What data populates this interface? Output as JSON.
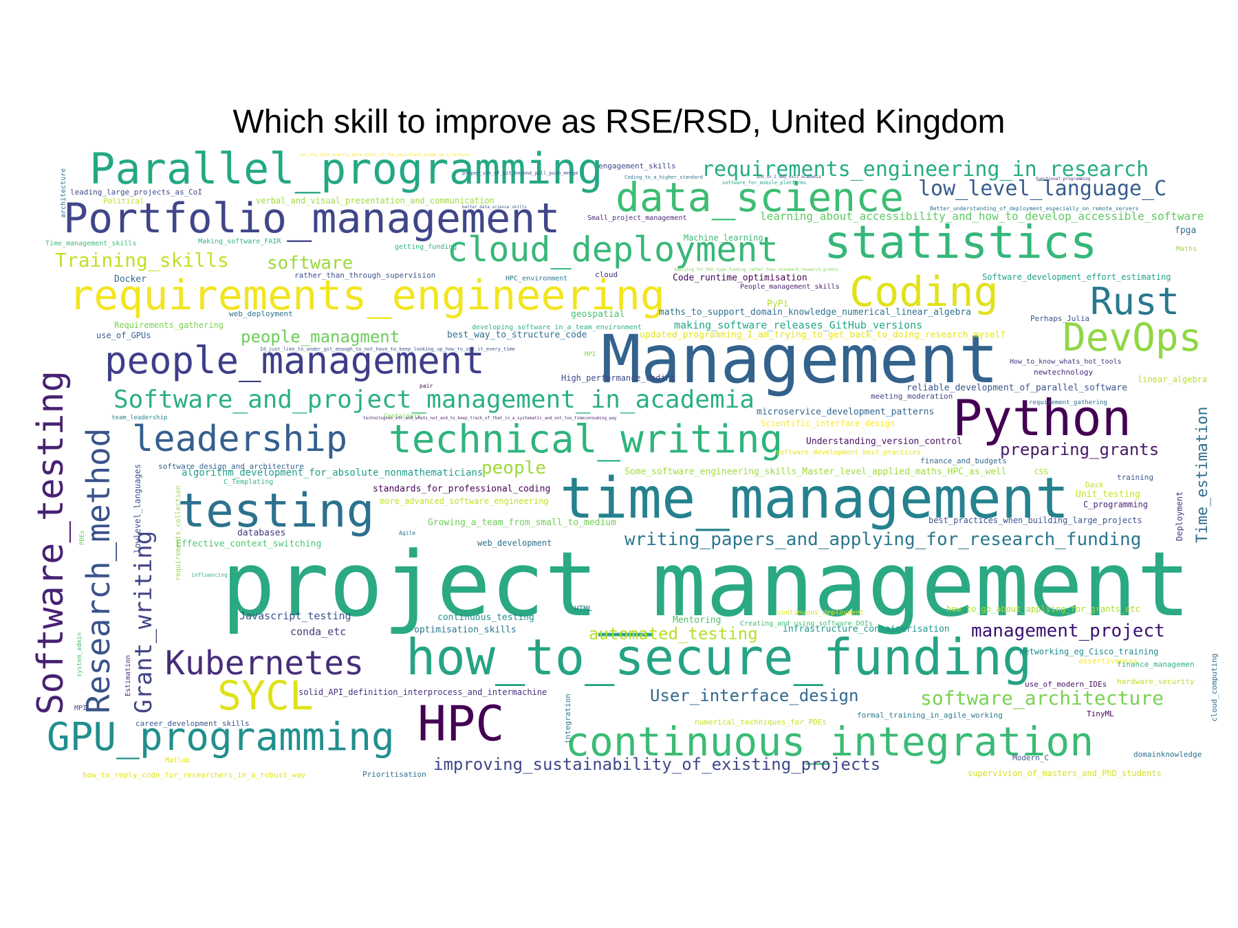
{
  "title": "Which skill to improve as RSE/RSD, United Kingdom",
  "words": [
    {
      "t": "project_management",
      "c": "#2aa983"
    },
    {
      "t": "Management",
      "c": "#33628d"
    },
    {
      "t": "time_management",
      "c": "#26818e"
    },
    {
      "t": "how_to_secure_funding",
      "c": "#25a384"
    },
    {
      "t": "Parallel_programming",
      "c": "#24a884"
    },
    {
      "t": "Portfolio_management",
      "c": "#404688"
    },
    {
      "t": "requirements_engineering",
      "c": "#f2e51e"
    },
    {
      "t": "statistics",
      "c": "#35b779"
    },
    {
      "t": "data_science",
      "c": "#3cbc74"
    },
    {
      "t": "cloud_deployment",
      "c": "#37b878"
    },
    {
      "t": "Coding",
      "c": "#e1e21a"
    },
    {
      "t": "Rust",
      "c": "#2a788e"
    },
    {
      "t": "DevOps",
      "c": "#8fd744"
    },
    {
      "t": "Python",
      "c": "#440154"
    },
    {
      "t": "people_management",
      "c": "#3e3e8a"
    },
    {
      "t": "technical_writing",
      "c": "#2fb47c"
    },
    {
      "t": "leadership",
      "c": "#355f8d"
    },
    {
      "t": "testing",
      "c": "#2c718e"
    },
    {
      "t": "Software_and_project_management_in_academia",
      "c": "#2ab07f"
    },
    {
      "t": "continuous_integration",
      "c": "#3bbb75"
    },
    {
      "t": "HPC",
      "c": "#440154"
    },
    {
      "t": "GPU_programming",
      "c": "#218f8d"
    },
    {
      "t": "Kubernetes",
      "c": "#472d7b"
    },
    {
      "t": "SYCL",
      "c": "#dde318"
    },
    {
      "t": "Software_testing",
      "c": "#482173"
    },
    {
      "t": "Research_method",
      "c": "#3a538b"
    },
    {
      "t": "Grant_writing",
      "c": "#414487"
    },
    {
      "t": "requirements_engineering_in_research",
      "c": "#25ac82"
    },
    {
      "t": "low_level_language_C",
      "c": "#365c8d"
    },
    {
      "t": "Training_skills",
      "c": "#c2df23"
    },
    {
      "t": "software",
      "c": "#9bd93c"
    },
    {
      "t": "people_managment",
      "c": "#6ccd5a"
    },
    {
      "t": "writing_papers_and_applying_for_research_funding",
      "c": "#2a768e"
    },
    {
      "t": "improving_sustainability_of_existing_projects",
      "c": "#3f4889"
    },
    {
      "t": "management_project",
      "c": "#3b0f70"
    },
    {
      "t": "software_architecture",
      "c": "#7ad151"
    },
    {
      "t": "preparing_grants",
      "c": "#481769"
    },
    {
      "t": "User_interface_design",
      "c": "#31688e"
    },
    {
      "t": "automated_testing",
      "c": "#b5de2b"
    },
    {
      "t": "people",
      "c": "#9dd93b"
    },
    {
      "t": "Time_estimation",
      "c": "#2e6e8e"
    },
    {
      "t": "learning_about_accessibility_and_how_to_develop_accessible_software",
      "c": "#5ec962"
    },
    {
      "t": "updated_programming_I_am_trying_to_get_back_to_doing_research_myself",
      "c": "#e5e419"
    },
    {
      "t": "making_software_releases_GitHub_versions",
      "c": "#22a785"
    },
    {
      "t": "maths_to_support_domain_knowledge_numerical_linear_algebra",
      "c": "#2c728e"
    },
    {
      "t": "reliable_development_of_parallel_software",
      "c": "#39568c"
    },
    {
      "t": "microservice_development_patterns",
      "c": "#32658e"
    },
    {
      "t": "Understanding_version_control",
      "c": "#471063"
    },
    {
      "t": "algorithm_development_for_absolute_nonmathematicians",
      "c": "#1f9f88"
    },
    {
      "t": "Some_software_engineering_skills_Master_level_applied_maths_HPC_as_well",
      "c": "#9fda3a"
    },
    {
      "t": "best_practices_when_building_large_projects",
      "c": "#3a538b"
    },
    {
      "t": "how_to_go_about_applying_for_grants_etc",
      "c": "#a8db34"
    },
    {
      "t": "infrastructure_containerisation",
      "c": "#1f948c"
    },
    {
      "t": "optimisation_skills",
      "c": "#2a768e"
    },
    {
      "t": "continuous_testing",
      "c": "#228b8d"
    },
    {
      "t": "Javascript_testing",
      "c": "#3b528b"
    },
    {
      "t": "conda_etc",
      "c": "#443983"
    },
    {
      "t": "solid_API_definition_interprocess_and_intermachine",
      "c": "#46307e"
    },
    {
      "t": "Growing_a_team_from_small_to_medium",
      "c": "#6ece58"
    },
    {
      "t": "Effective_context_switching",
      "c": "#4ec36b"
    },
    {
      "t": "standards_for_professional_coding",
      "c": "#440154"
    },
    {
      "t": "more_advanced_software_engineering",
      "c": "#c0df25"
    },
    {
      "t": "best_way_to_structure_code",
      "c": "#2d708e"
    },
    {
      "t": "Requirements_gathering",
      "c": "#7ad151"
    },
    {
      "t": "use_of_GPUs",
      "c": "#355f8d"
    },
    {
      "t": "verbal_and_visual_presentation_and_communication",
      "c": "#9fda3a"
    },
    {
      "t": "leading_large_projects_as_CoI",
      "c": "#3e4a89"
    },
    {
      "t": "Political",
      "c": "#bddf26"
    },
    {
      "t": "engagement_skills",
      "c": "#3f4788"
    },
    {
      "t": "Software_development_effort_estimating",
      "c": "#1fa188"
    },
    {
      "t": "Code_runtime_optimisation",
      "c": "#440154"
    },
    {
      "t": "People_management_skills",
      "c": "#481f70"
    },
    {
      "t": "Machine_learning",
      "c": "#3dbc74"
    },
    {
      "t": "Small_project_management",
      "c": "#482878"
    },
    {
      "t": "getting_funding",
      "c": "#2db27d"
    },
    {
      "t": "rather_than_through_supervision",
      "c": "#3b528b"
    },
    {
      "t": "High_performance_coding",
      "c": "#3e4989"
    },
    {
      "t": "Docker",
      "c": "#31688e"
    },
    {
      "t": "PyPi",
      "c": "#b5de2b"
    },
    {
      "t": "geospatial",
      "c": "#4ac16d"
    },
    {
      "t": "fpga",
      "c": "#2c728e"
    },
    {
      "t": "Perhaps_Julia",
      "c": "#3a548c"
    },
    {
      "t": "newtechnology",
      "c": "#472c7a"
    },
    {
      "t": "linear_algebra",
      "c": "#b8de29"
    },
    {
      "t": "web_deployment",
      "c": "#2c728e"
    },
    {
      "t": "meeting_moderation",
      "c": "#414487"
    },
    {
      "t": "Scientific_interface_design",
      "c": "#fde725"
    },
    {
      "t": "finance_and_budgets",
      "c": "#31688e"
    },
    {
      "t": "web_development",
      "c": "#2d708e"
    },
    {
      "t": "databases",
      "c": "#46337f"
    },
    {
      "t": "Mentoring",
      "c": "#4cc26c"
    },
    {
      "t": "HTML",
      "c": "#2a788e"
    },
    {
      "t": "training",
      "c": "#39568c"
    },
    {
      "t": "Unit_testing",
      "c": "#cae11f"
    },
    {
      "t": "C_programming",
      "c": "#482576"
    },
    {
      "t": "Dask",
      "c": "#c2df23"
    },
    {
      "t": "Deployment",
      "c": "#453581"
    },
    {
      "t": "CSS",
      "c": "#a2da37"
    },
    {
      "t": "networking_eg_Cisco_training",
      "c": "#23898e"
    },
    {
      "t": "assertiveness",
      "c": "#fde725"
    },
    {
      "t": "finance_managemen",
      "c": "#2fb47c"
    },
    {
      "t": "hardware_security",
      "c": "#b8de29"
    },
    {
      "t": "use_of_modern_IDEs",
      "c": "#471365"
    },
    {
      "t": "TinyML",
      "c": "#440154"
    },
    {
      "t": "domainknowledge",
      "c": "#2d708e"
    },
    {
      "t": "cloud_computing",
      "c": "#2e6e8e"
    },
    {
      "t": "Modern_C",
      "c": "#3a548c"
    },
    {
      "t": "supervivion_of_masters_and_PhD_students",
      "c": "#d5e21a"
    },
    {
      "t": "formal_training_in_agile_working",
      "c": "#297b8e"
    },
    {
      "t": "numerical_techniques_for_PDEs",
      "c": "#c8e020"
    },
    {
      "t": "career_development_skills",
      "c": "#39568c"
    },
    {
      "t": "Matlab",
      "c": "#dde318"
    },
    {
      "t": "how_to_reply_code_for_researchers_in_a_robust_way",
      "c": "#dde318"
    },
    {
      "t": "Prioritisation",
      "c": "#2e6e8e"
    },
    {
      "t": "lowlevel_languages",
      "c": "#3a548c"
    },
    {
      "t": "requirements_collection",
      "c": "#95d840"
    },
    {
      "t": "Estimation",
      "c": "#472f7d"
    },
    {
      "t": "integration",
      "c": "#2a788e"
    },
    {
      "t": "architecture",
      "c": "#2c728e"
    },
    {
      "t": "software_design_and_architecture",
      "c": "#33638d"
    },
    {
      "t": "C_Templating",
      "c": "#31b57b"
    },
    {
      "t": "Time_management_skills",
      "c": "#3dbc74"
    },
    {
      "t": "Making_software_FAIR",
      "c": "#2fb47c"
    },
    {
      "t": "HPC_environment",
      "c": "#2a788e"
    },
    {
      "t": "cloud",
      "c": "#46327e"
    },
    {
      "t": "Maths",
      "c": "#9bd93c"
    },
    {
      "t": "pair",
      "c": "#440154"
    },
    {
      "t": "team_leadership",
      "c": "#26828e"
    },
    {
      "t": "MPI",
      "c": "#3e4989"
    },
    {
      "t": "system_admin",
      "c": "#4ac16d"
    },
    {
      "t": "Agile",
      "c": "#2a788e"
    },
    {
      "t": "PDEs",
      "c": "#5ec962"
    },
    {
      "t": "Containers",
      "c": "#7ad151"
    },
    {
      "t": "MPI",
      "c": "#84d44b"
    },
    {
      "t": "influencing",
      "c": "#2fb47c"
    },
    {
      "t": "continuous_deployment",
      "c": "#dde318"
    },
    {
      "t": "Creating_and_using_software_DOIs",
      "c": "#3dbc74"
    },
    {
      "t": "software_development_best_practices",
      "c": "#e7e419"
    },
    {
      "t": "developing_software_in_a_team_environment",
      "c": "#2db27d"
    },
    {
      "t": "How_to_know_whats_hot_tools",
      "c": "#46327e"
    },
    {
      "t": "requirement_gathering",
      "c": "#2e6e8e"
    },
    {
      "t": "Id_just_like_to_under_git_enough_to_not_have_to_keep_looking_up_how_to_use_it_every_time",
      "c": "#3b528b"
    },
    {
      "t": "technologies_etc_and_whats_not_and_to_keep_track_of_that_in_a_systematic_and_not_too_timeconsuming_way",
      "c": "#482173"
    },
    {
      "t": "better_data_science_skills",
      "c": "#3b528b"
    },
    {
      "t": "Better_understanding_of_deployment_especially_on_remote_servers",
      "c": "#2c728e"
    },
    {
      "t": "software_for_mobile_platforms",
      "c": "#1fa188"
    },
    {
      "t": "Coding_to_a_higher_standard",
      "c": "#2d708e"
    },
    {
      "t": "proper_use_of_git_beyond_pull_push_merge",
      "c": "#3b528b"
    },
    {
      "t": "not_the_tech_exactly_more_start_of_the_equivalent_grade_as_a_lecturer",
      "c": "#fde725"
    },
    {
      "t": "Functional_programming",
      "c": "#482878"
    },
    {
      "t": "Applying_for_RSE_type_funding_rather_than_standard_research_grants",
      "c": "#7ad151"
    },
    {
      "t": "and_so_I_may_exit_academia",
      "c": "#3b528b"
    }
  ]
}
